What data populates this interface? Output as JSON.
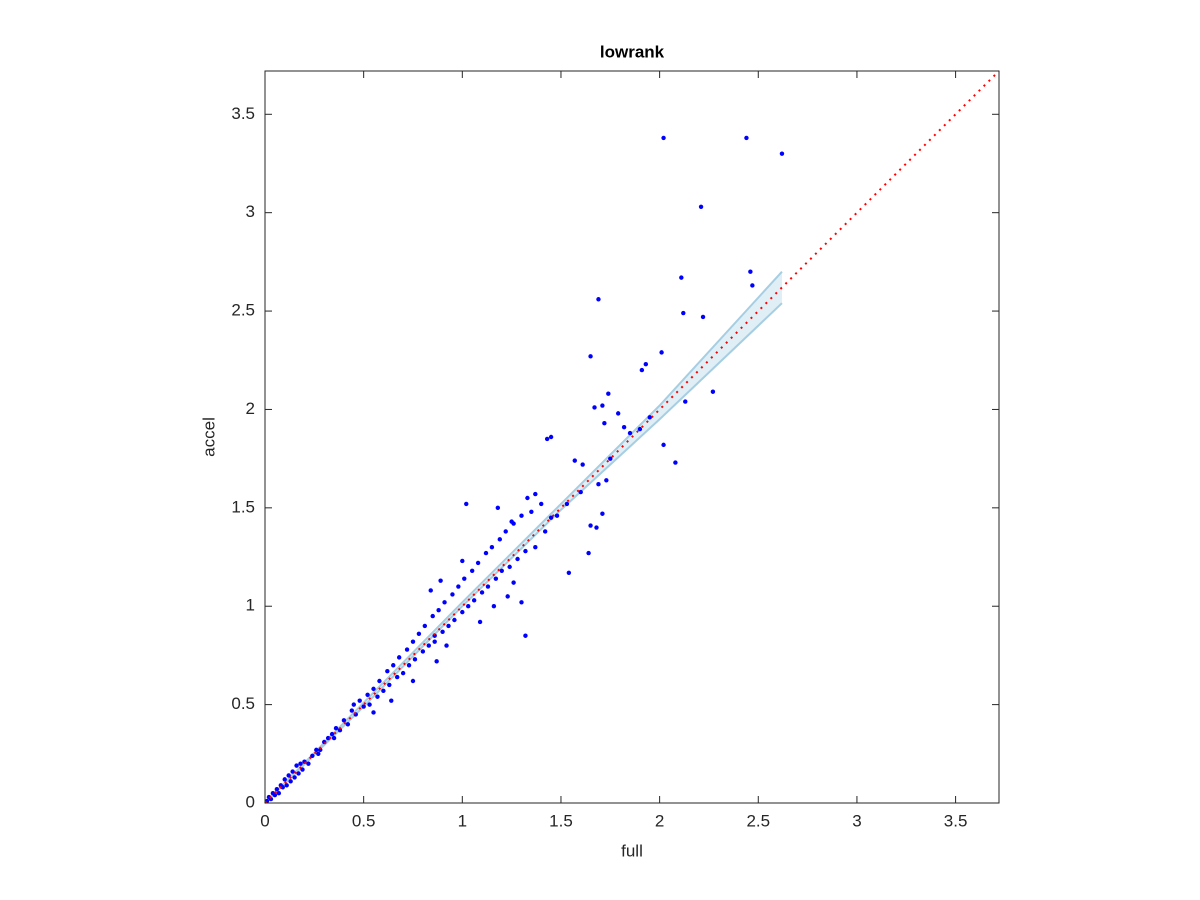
{
  "chart_data": {
    "type": "scatter",
    "title": "lowrank",
    "x_label": "full",
    "y_label": "accel",
    "xlim": [
      0,
      3.72
    ],
    "ylim": [
      0,
      3.72
    ],
    "xticks": [
      0,
      0.5,
      1,
      1.5,
      2,
      2.5,
      3,
      3.5
    ],
    "yticks": [
      0,
      0.5,
      1,
      1.5,
      2,
      2.5,
      3,
      3.5
    ],
    "points": {
      "color": "#0000ff",
      "x": [
        0.01,
        0.02,
        0.03,
        0.04,
        0.05,
        0.06,
        0.07,
        0.08,
        0.09,
        0.1,
        0.11,
        0.12,
        0.13,
        0.14,
        0.15,
        0.16,
        0.17,
        0.18,
        0.19,
        0.2,
        0.22,
        0.24,
        0.26,
        0.28,
        0.3,
        0.32,
        0.34,
        0.36,
        0.38,
        0.4,
        0.42,
        0.44,
        0.46,
        0.48,
        0.5,
        0.52,
        0.53,
        0.55,
        0.57,
        0.58,
        0.6,
        0.62,
        0.63,
        0.65,
        0.67,
        0.68,
        0.7,
        0.72,
        0.73,
        0.75,
        0.76,
        0.78,
        0.8,
        0.81,
        0.83,
        0.85,
        0.86,
        0.88,
        0.9,
        0.91,
        0.93,
        0.95,
        0.96,
        0.98,
        1.0,
        1.01,
        1.03,
        1.05,
        1.06,
        1.08,
        1.1,
        1.12,
        1.13,
        1.15,
        1.17,
        1.19,
        1.2,
        1.22,
        1.24,
        1.26,
        1.28,
        1.3,
        1.32,
        1.35,
        1.37,
        1.4,
        1.42,
        1.45,
        0.84,
        0.87,
        0.75,
        0.64,
        0.92,
        1.09,
        1.16,
        1.23,
        0.45,
        0.55,
        0.35,
        0.27,
        1.48,
        1.53,
        1.6,
        1.75,
        1.85,
        1.0,
        0.89,
        2.02,
        2.44,
        2.62,
        2.21,
        2.11,
        2.46,
        2.47,
        1.69,
        2.12,
        2.22,
        1.65,
        2.01,
        1.91,
        1.93,
        2.27,
        2.13,
        1.74,
        1.67,
        1.71,
        1.79,
        1.72,
        1.82,
        1.9,
        1.95,
        2.02,
        2.08,
        1.73,
        1.69,
        1.71,
        1.65,
        1.68,
        1.64,
        1.54,
        1.45,
        1.43,
        1.57,
        1.61,
        1.37,
        1.33,
        1.02,
        1.25,
        1.18,
        1.32,
        1.26,
        1.3,
        0.86
      ],
      "y": [
        0.01,
        0.03,
        0.02,
        0.05,
        0.04,
        0.07,
        0.05,
        0.09,
        0.08,
        0.12,
        0.09,
        0.14,
        0.11,
        0.16,
        0.13,
        0.19,
        0.15,
        0.2,
        0.17,
        0.21,
        0.2,
        0.24,
        0.27,
        0.27,
        0.31,
        0.33,
        0.35,
        0.38,
        0.37,
        0.42,
        0.4,
        0.47,
        0.45,
        0.52,
        0.49,
        0.55,
        0.5,
        0.58,
        0.54,
        0.62,
        0.57,
        0.67,
        0.6,
        0.7,
        0.64,
        0.74,
        0.66,
        0.78,
        0.7,
        0.82,
        0.73,
        0.86,
        0.77,
        0.9,
        0.8,
        0.95,
        0.82,
        0.98,
        0.87,
        1.02,
        0.9,
        1.06,
        0.93,
        1.1,
        0.97,
        1.14,
        1.0,
        1.18,
        1.03,
        1.22,
        1.07,
        1.27,
        1.1,
        1.3,
        1.14,
        1.34,
        1.18,
        1.38,
        1.2,
        1.42,
        1.24,
        1.46,
        1.28,
        1.48,
        1.3,
        1.52,
        1.38,
        1.45,
        1.08,
        0.72,
        0.62,
        0.52,
        0.8,
        0.92,
        1.0,
        1.05,
        0.5,
        0.46,
        0.33,
        0.25,
        1.46,
        1.52,
        1.58,
        1.75,
        1.88,
        1.23,
        1.13,
        3.38,
        3.38,
        3.3,
        3.03,
        2.67,
        2.7,
        2.63,
        2.56,
        2.49,
        2.47,
        2.27,
        2.29,
        2.2,
        2.23,
        2.09,
        2.04,
        2.08,
        2.01,
        2.02,
        1.98,
        1.93,
        1.91,
        1.9,
        1.96,
        1.82,
        1.73,
        1.64,
        1.62,
        1.47,
        1.41,
        1.4,
        1.27,
        1.17,
        1.86,
        1.85,
        1.74,
        1.72,
        1.57,
        1.55,
        1.52,
        1.43,
        1.5,
        0.85,
        1.12,
        1.02,
        0.85
      ]
    },
    "band": {
      "color": "#a6cee3",
      "x": [
        0,
        0.5,
        1,
        1.5,
        2,
        2.62
      ],
      "lower": [
        0,
        0.49,
        1.0,
        1.49,
        1.95,
        2.54
      ],
      "upper": [
        0,
        0.51,
        1.02,
        1.52,
        2.02,
        2.7
      ]
    },
    "reference_line": {
      "color": "#ff0000",
      "x": [
        0,
        3.72
      ],
      "y": [
        0,
        3.72
      ]
    }
  }
}
